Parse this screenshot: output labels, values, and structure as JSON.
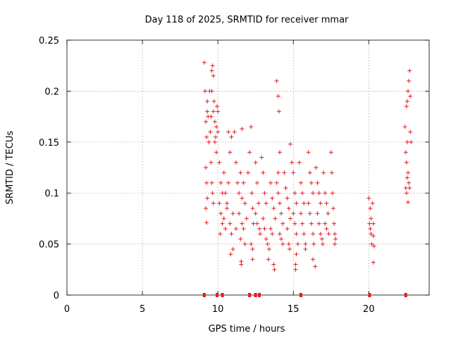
{
  "chart_data": {
    "type": "scatter",
    "title": "Day 118 of 2025, SRMTID for receiver mmar",
    "xlabel": "GPS time / hours",
    "ylabel": "SRMTID / TECUs",
    "xlim": [
      0,
      24
    ],
    "ylim": [
      0,
      0.25
    ],
    "xticks": [
      0,
      5,
      10,
      15,
      20
    ],
    "yticks": [
      0,
      0.05,
      0.1,
      0.15,
      0.2,
      0.25
    ],
    "xtick_labels": [
      "0",
      "5",
      "10",
      "15",
      "20"
    ],
    "ytick_labels": [
      "0",
      "0.05",
      "0.1",
      "0.15",
      "0.2",
      "0.25"
    ],
    "grid": true,
    "marker": "+",
    "color": "#e41a1c",
    "series": [
      {
        "name": "SRMTID",
        "points": [
          [
            9.1,
            0.228
          ],
          [
            9.15,
            0.2
          ],
          [
            9.2,
            0.17
          ],
          [
            9.25,
            0.155
          ],
          [
            9.3,
            0.19
          ],
          [
            9.35,
            0.175
          ],
          [
            9.4,
            0.15
          ],
          [
            9.45,
            0.2
          ],
          [
            9.2,
            0.125
          ],
          [
            9.25,
            0.11
          ],
          [
            9.3,
            0.095
          ],
          [
            9.2,
            0.085
          ],
          [
            9.25,
            0.071
          ],
          [
            9.3,
            0.18
          ],
          [
            9.5,
            0.16
          ],
          [
            9.55,
            0.175
          ],
          [
            9.6,
            0.22
          ],
          [
            9.65,
            0.225
          ],
          [
            9.7,
            0.215
          ],
          [
            9.75,
            0.19
          ],
          [
            9.8,
            0.17
          ],
          [
            9.85,
            0.155
          ],
          [
            9.6,
            0.2
          ],
          [
            9.7,
            0.18
          ],
          [
            9.8,
            0.15
          ],
          [
            9.9,
            0.165
          ],
          [
            9.95,
            0.185
          ],
          [
            10.0,
            0.18
          ],
          [
            9.55,
            0.13
          ],
          [
            9.6,
            0.11
          ],
          [
            9.65,
            0.1
          ],
          [
            9.7,
            0.09
          ],
          [
            9.9,
            0.14
          ],
          [
            10.0,
            0.16
          ],
          [
            10.1,
            0.13
          ],
          [
            10.2,
            0.11
          ],
          [
            10.3,
            0.1
          ],
          [
            10.1,
            0.09
          ],
          [
            10.2,
            0.08
          ],
          [
            10.3,
            0.07
          ],
          [
            10.15,
            0.06
          ],
          [
            10.4,
            0.12
          ],
          [
            10.5,
            0.1
          ],
          [
            10.6,
            0.085
          ],
          [
            10.7,
            0.16
          ],
          [
            10.8,
            0.14
          ],
          [
            10.9,
            0.155
          ],
          [
            10.4,
            0.075
          ],
          [
            10.5,
            0.065
          ],
          [
            10.6,
            0.09
          ],
          [
            10.7,
            0.11
          ],
          [
            10.8,
            0.07
          ],
          [
            10.9,
            0.06
          ],
          [
            11.0,
            0.08
          ],
          [
            11.1,
            0.16
          ],
          [
            11.2,
            0.13
          ],
          [
            11.3,
            0.11
          ],
          [
            11.4,
            0.1
          ],
          [
            11.5,
            0.12
          ],
          [
            11.6,
            0.095
          ],
          [
            11.0,
            0.045
          ],
          [
            11.2,
            0.065
          ],
          [
            11.4,
            0.08
          ],
          [
            11.6,
            0.07
          ],
          [
            11.5,
            0.055
          ],
          [
            10.85,
            0.04
          ],
          [
            11.7,
            0.11
          ],
          [
            11.8,
            0.09
          ],
          [
            11.9,
            0.075
          ],
          [
            11.7,
            0.065
          ],
          [
            11.8,
            0.05
          ],
          [
            11.55,
            0.033
          ],
          [
            11.55,
            0.03
          ],
          [
            11.6,
            0.163
          ],
          [
            12.0,
            0.12
          ],
          [
            12.1,
            0.14
          ],
          [
            12.2,
            0.165
          ],
          [
            12.25,
            0.1
          ],
          [
            12.3,
            0.085
          ],
          [
            12.35,
            0.07
          ],
          [
            12.2,
            0.05
          ],
          [
            12.3,
            0.045
          ],
          [
            12.3,
            0.035
          ],
          [
            12.5,
            0.13
          ],
          [
            12.6,
            0.11
          ],
          [
            12.7,
            0.09
          ],
          [
            12.5,
            0.08
          ],
          [
            12.6,
            0.07
          ],
          [
            12.75,
            0.065
          ],
          [
            12.8,
            0.06
          ],
          [
            12.9,
            0.135
          ],
          [
            13.0,
            0.12
          ],
          [
            13.1,
            0.1
          ],
          [
            13.2,
            0.09
          ],
          [
            13.0,
            0.075
          ],
          [
            13.1,
            0.065
          ],
          [
            13.2,
            0.055
          ],
          [
            13.3,
            0.05
          ],
          [
            13.4,
            0.045
          ],
          [
            13.35,
            0.035
          ],
          [
            13.5,
            0.11
          ],
          [
            13.6,
            0.095
          ],
          [
            13.7,
            0.085
          ],
          [
            13.8,
            0.075
          ],
          [
            13.5,
            0.065
          ],
          [
            13.6,
            0.06
          ],
          [
            13.7,
            0.03
          ],
          [
            13.75,
            0.025
          ],
          [
            13.9,
            0.21
          ],
          [
            14.0,
            0.195
          ],
          [
            14.05,
            0.18
          ],
          [
            14.1,
            0.14
          ],
          [
            14.0,
            0.12
          ],
          [
            13.9,
            0.11
          ],
          [
            14.0,
            0.1
          ],
          [
            14.1,
            0.09
          ],
          [
            14.2,
            0.08
          ],
          [
            14.3,
            0.07
          ],
          [
            14.1,
            0.06
          ],
          [
            14.2,
            0.055
          ],
          [
            14.3,
            0.05
          ],
          [
            14.4,
            0.12
          ],
          [
            14.5,
            0.105
          ],
          [
            14.6,
            0.095
          ],
          [
            14.7,
            0.085
          ],
          [
            14.8,
            0.075
          ],
          [
            14.6,
            0.065
          ],
          [
            14.7,
            0.05
          ],
          [
            14.75,
            0.045
          ],
          [
            14.8,
            0.148
          ],
          [
            14.9,
            0.13
          ],
          [
            15.0,
            0.12
          ],
          [
            15.1,
            0.1
          ],
          [
            15.2,
            0.09
          ],
          [
            15.0,
            0.08
          ],
          [
            15.1,
            0.07
          ],
          [
            15.2,
            0.06
          ],
          [
            15.3,
            0.05
          ],
          [
            15.2,
            0.04
          ],
          [
            15.15,
            0.03
          ],
          [
            15.15,
            0.025
          ],
          [
            15.4,
            0.13
          ],
          [
            15.5,
            0.11
          ],
          [
            15.6,
            0.1
          ],
          [
            15.7,
            0.09
          ],
          [
            15.5,
            0.08
          ],
          [
            15.6,
            0.07
          ],
          [
            15.7,
            0.06
          ],
          [
            15.8,
            0.05
          ],
          [
            15.8,
            0.045
          ],
          [
            16.0,
            0.14
          ],
          [
            16.1,
            0.12
          ],
          [
            16.2,
            0.11
          ],
          [
            16.3,
            0.1
          ],
          [
            16.0,
            0.09
          ],
          [
            16.1,
            0.08
          ],
          [
            16.2,
            0.07
          ],
          [
            16.3,
            0.06
          ],
          [
            16.35,
            0.05
          ],
          [
            16.3,
            0.035
          ],
          [
            16.45,
            0.028
          ],
          [
            16.5,
            0.125
          ],
          [
            16.6,
            0.11
          ],
          [
            16.7,
            0.1
          ],
          [
            16.8,
            0.09
          ],
          [
            16.6,
            0.08
          ],
          [
            16.7,
            0.07
          ],
          [
            16.8,
            0.06
          ],
          [
            16.9,
            0.055
          ],
          [
            16.95,
            0.05
          ],
          [
            17.0,
            0.12
          ],
          [
            17.1,
            0.1
          ],
          [
            17.2,
            0.09
          ],
          [
            17.3,
            0.08
          ],
          [
            17.1,
            0.07
          ],
          [
            17.2,
            0.065
          ],
          [
            17.35,
            0.06
          ],
          [
            17.5,
            0.14
          ],
          [
            17.55,
            0.12
          ],
          [
            17.6,
            0.1
          ],
          [
            17.65,
            0.085
          ],
          [
            17.7,
            0.07
          ],
          [
            17.75,
            0.06
          ],
          [
            17.8,
            0.055
          ],
          [
            17.75,
            0.05
          ],
          [
            20.0,
            0.095
          ],
          [
            20.1,
            0.085
          ],
          [
            20.15,
            0.075
          ],
          [
            20.05,
            0.07
          ],
          [
            20.1,
            0.065
          ],
          [
            20.15,
            0.06
          ],
          [
            20.2,
            0.05
          ],
          [
            20.25,
            0.09
          ],
          [
            20.3,
            0.07
          ],
          [
            20.3,
            0.058
          ],
          [
            20.35,
            0.048
          ],
          [
            20.3,
            0.032
          ],
          [
            22.4,
            0.165
          ],
          [
            22.5,
            0.185
          ],
          [
            22.55,
            0.19
          ],
          [
            22.6,
            0.2
          ],
          [
            22.65,
            0.21
          ],
          [
            22.7,
            0.22
          ],
          [
            22.75,
            0.195
          ],
          [
            22.45,
            0.14
          ],
          [
            22.5,
            0.13
          ],
          [
            22.55,
            0.15
          ],
          [
            22.6,
            0.12
          ],
          [
            22.65,
            0.11
          ],
          [
            22.7,
            0.105
          ],
          [
            22.45,
            0.105
          ],
          [
            22.5,
            0.1
          ],
          [
            22.55,
            0.115
          ],
          [
            22.6,
            0.091
          ],
          [
            22.75,
            0.16
          ],
          [
            22.8,
            0.15
          ]
        ]
      }
    ],
    "baseline_marks_x": [
      9.1,
      9.95,
      10.3,
      12.1,
      12.5,
      12.75,
      15.5,
      20.05,
      22.45
    ]
  }
}
